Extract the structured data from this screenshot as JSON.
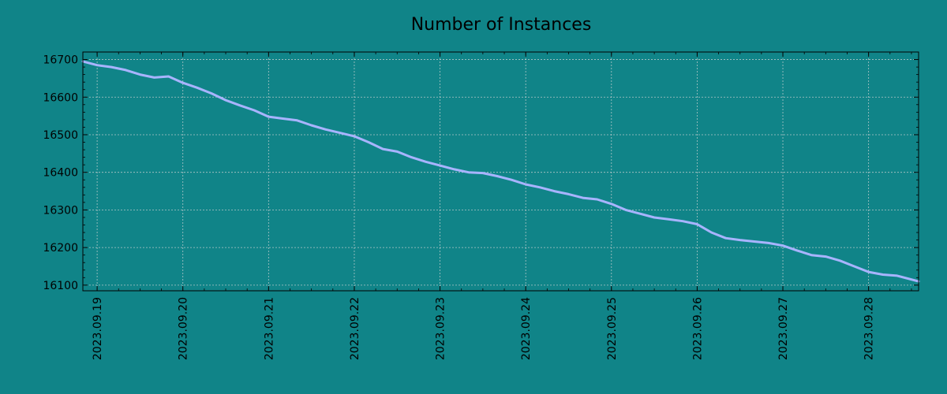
{
  "chart_data": {
    "type": "line",
    "title": "Number of Instances",
    "xlabel": "",
    "ylabel": "",
    "x_ticks": [
      "2023.09.19",
      "2023.09.20",
      "2023.09.21",
      "2023.09.22",
      "2023.09.23",
      "2023.09.24",
      "2023.09.25",
      "2023.09.26",
      "2023.09.27",
      "2023.09.28"
    ],
    "y_ticks": [
      16100,
      16200,
      16300,
      16400,
      16500,
      16600,
      16700
    ],
    "xlim": [
      "2023-09-18T20:00",
      "2023-09-28T14:00"
    ],
    "ylim": [
      16085,
      16720
    ],
    "grid": true,
    "colors": {
      "background": "#108488",
      "line": "#a8b4ff",
      "grid": "#d8d8d8"
    },
    "series": [
      {
        "x": [
          "2023-09-18T20:00",
          "2023-09-19T00:00",
          "2023-09-19T04:00",
          "2023-09-19T08:00",
          "2023-09-19T12:00",
          "2023-09-19T16:00",
          "2023-09-19T20:00",
          "2023-09-20T00:00",
          "2023-09-20T04:00",
          "2023-09-20T08:00",
          "2023-09-20T12:00",
          "2023-09-20T16:00",
          "2023-09-20T20:00",
          "2023-09-21T00:00",
          "2023-09-21T04:00",
          "2023-09-21T08:00",
          "2023-09-21T12:00",
          "2023-09-21T16:00",
          "2023-09-21T20:00",
          "2023-09-22T00:00",
          "2023-09-22T04:00",
          "2023-09-22T08:00",
          "2023-09-22T12:00",
          "2023-09-22T16:00",
          "2023-09-22T20:00",
          "2023-09-23T00:00",
          "2023-09-23T04:00",
          "2023-09-23T08:00",
          "2023-09-23T12:00",
          "2023-09-23T16:00",
          "2023-09-23T20:00",
          "2023-09-24T00:00",
          "2023-09-24T04:00",
          "2023-09-24T08:00",
          "2023-09-24T12:00",
          "2023-09-24T16:00",
          "2023-09-24T20:00",
          "2023-09-25T00:00",
          "2023-09-25T04:00",
          "2023-09-25T08:00",
          "2023-09-25T12:00",
          "2023-09-25T16:00",
          "2023-09-25T20:00",
          "2023-09-26T00:00",
          "2023-09-26T04:00",
          "2023-09-26T08:00",
          "2023-09-26T12:00",
          "2023-09-26T16:00",
          "2023-09-26T20:00",
          "2023-09-27T00:00",
          "2023-09-27T04:00",
          "2023-09-27T08:00",
          "2023-09-27T12:00",
          "2023-09-27T16:00",
          "2023-09-27T20:00",
          "2023-09-28T00:00",
          "2023-09-28T04:00",
          "2023-09-28T08:00",
          "2023-09-28T14:00"
        ],
        "values": [
          16695,
          16685,
          16680,
          16672,
          16660,
          16652,
          16655,
          16638,
          16625,
          16610,
          16592,
          16578,
          16565,
          16548,
          16543,
          16538,
          16525,
          16514,
          16505,
          16496,
          16480,
          16462,
          16455,
          16440,
          16428,
          16418,
          16408,
          16400,
          16398,
          16390,
          16380,
          16368,
          16360,
          16350,
          16342,
          16332,
          16328,
          16316,
          16300,
          16290,
          16280,
          16275,
          16270,
          16262,
          16240,
          16225,
          16220,
          16216,
          16212,
          16205,
          16192,
          16180,
          16176,
          16165,
          16150,
          16135,
          16128,
          16125,
          16110
        ]
      }
    ]
  }
}
